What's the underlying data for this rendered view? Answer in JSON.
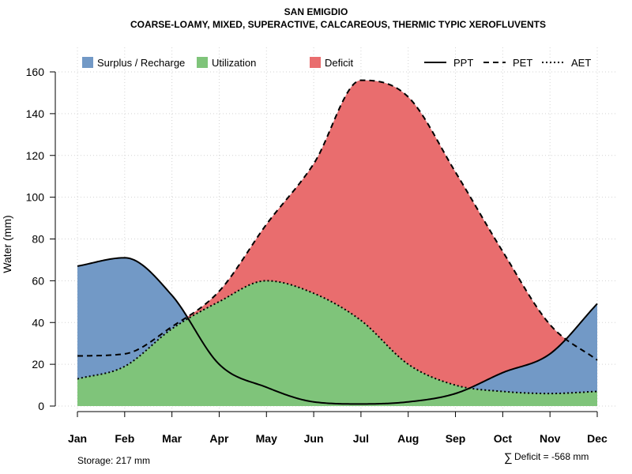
{
  "chart_data": {
    "type": "area",
    "title": "SAN EMIGDIO",
    "subtitle": "COARSE-LOAMY, MIXED, SUPERACTIVE, CALCAREOUS, THERMIC TYPIC XEROFLUVENTS",
    "xlabel": "",
    "ylabel": "Water (mm)",
    "ylim": [
      0,
      160
    ],
    "yticks": [
      0,
      20,
      40,
      60,
      80,
      100,
      120,
      140,
      160
    ],
    "categories": [
      "Jan",
      "Feb",
      "Mar",
      "Apr",
      "May",
      "Jun",
      "Jul",
      "Aug",
      "Sep",
      "Oct",
      "Nov",
      "Dec"
    ],
    "grid": true,
    "legend_position": "top",
    "series": [
      {
        "name": "PPT",
        "style": "solid",
        "values": [
          67,
          71,
          53,
          20,
          9,
          2,
          1,
          2,
          6,
          16,
          25,
          49
        ]
      },
      {
        "name": "PET",
        "style": "dashed",
        "values": [
          24,
          25,
          38,
          55,
          87,
          116,
          156,
          148,
          112,
          74,
          39,
          22
        ]
      },
      {
        "name": "AET",
        "style": "dotted",
        "values": [
          13,
          19,
          37,
          50,
          60,
          54,
          41,
          20,
          10,
          7,
          6,
          7
        ]
      }
    ],
    "areas": [
      {
        "name": "Surplus / Recharge",
        "color": "#7299C6"
      },
      {
        "name": "Utilization",
        "color": "#7FC47A"
      },
      {
        "name": "Deficit",
        "color": "#E96D6E"
      }
    ],
    "annotations": {
      "storage": "Storage: 217 mm",
      "deficit_symbol": "∑",
      "deficit": "Deficit = -568 mm"
    }
  }
}
